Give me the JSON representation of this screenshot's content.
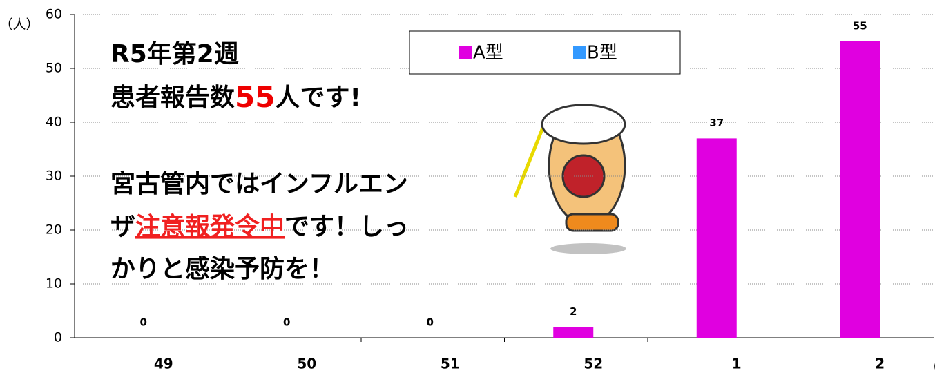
{
  "chart_data": {
    "type": "bar",
    "y_label": "（人）",
    "x_label": "（週）",
    "categories": [
      "49",
      "50",
      "51",
      "52",
      "1",
      "2"
    ],
    "series": [
      {
        "name": "A型",
        "color": "#e000e0",
        "values": [
          0,
          0,
          0,
          2,
          37,
          55
        ]
      },
      {
        "name": "B型",
        "color": "#3399ff",
        "values": [
          0,
          0,
          0,
          0,
          0,
          0
        ]
      }
    ],
    "ylim": [
      0,
      60
    ],
    "yticks": [
      0,
      10,
      20,
      30,
      40,
      50,
      60
    ],
    "grid": true,
    "annotations": [
      [
        "R5年第2週"
      ],
      [
        "患者報告数",
        "55",
        "人です!"
      ],
      [
        "宮古管内ではインフルエン"
      ],
      [
        "ザ",
        "注意報発令中",
        "です！しっ"
      ],
      [
        "かりと感染予防を！"
      ]
    ]
  }
}
